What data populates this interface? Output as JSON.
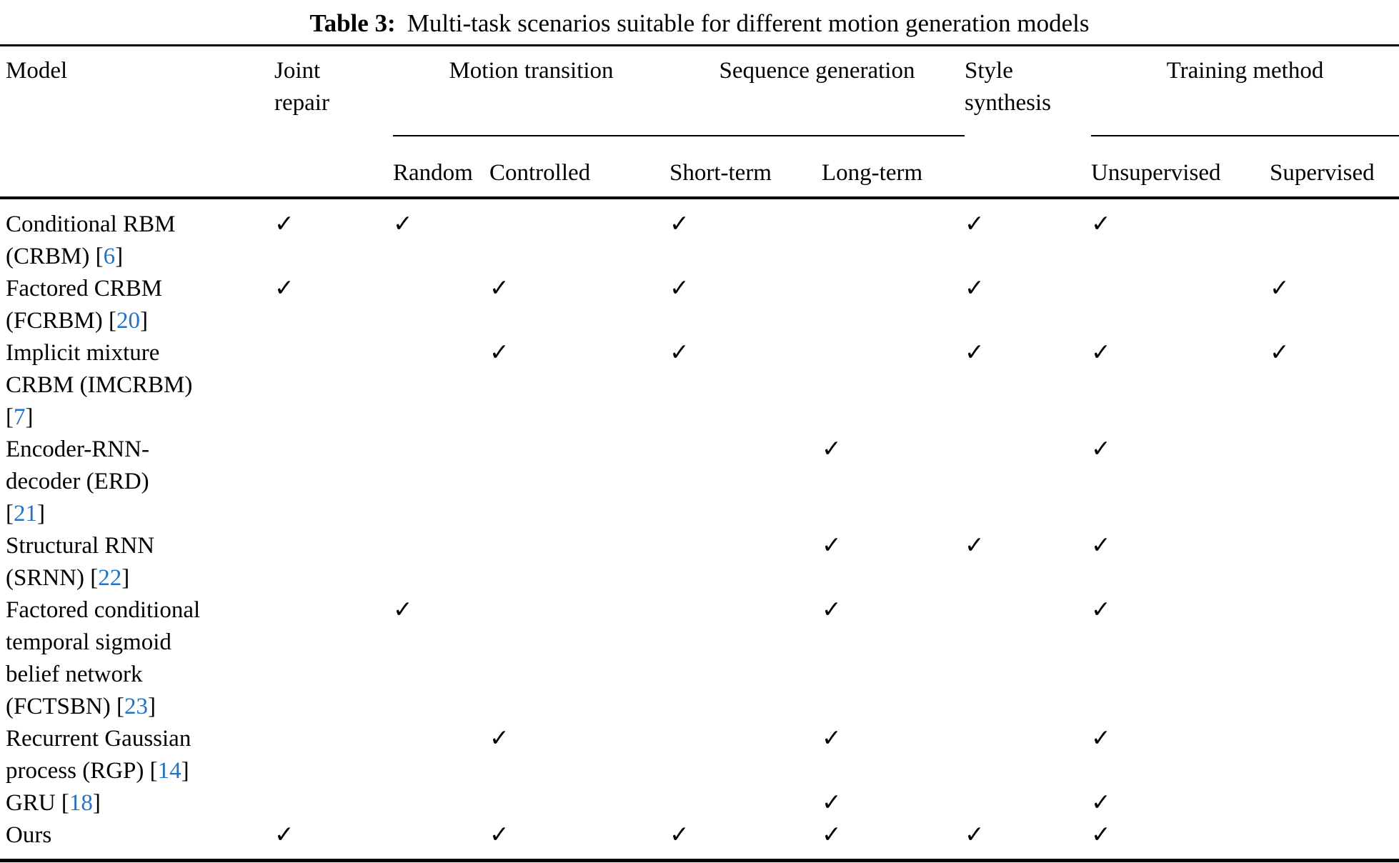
{
  "caption": {
    "label": "Table 3:",
    "text": "Multi-task scenarios suitable for different motion generation models"
  },
  "colors": {
    "text": "#000000",
    "reference_link": "#2472c4",
    "background": "#ffffff"
  },
  "icons": {
    "check": "✓"
  },
  "header": {
    "model": "Model",
    "joint_repair": "Joint\nrepair",
    "style_synthesis": "Style\nsynthesis",
    "groups": [
      {
        "label": "Motion transition",
        "children": [
          "Random",
          "Controlled"
        ]
      },
      {
        "label": "Sequence generation",
        "children": [
          "Short-term",
          "Long-term"
        ]
      },
      {
        "label": "Training method",
        "children": [
          "Unsupervised",
          "Supervised"
        ]
      }
    ],
    "check_columns": [
      "Joint repair",
      "Random",
      "Controlled",
      "Short-term",
      "Long-term",
      "Style synthesis",
      "Unsupervised",
      "Supervised"
    ]
  },
  "rows": [
    {
      "pre": "Conditional RBM\n(CRBM) [",
      "ref": "6",
      "post": "]",
      "checks": [
        true,
        true,
        false,
        true,
        false,
        true,
        true,
        false
      ]
    },
    {
      "pre": "Factored CRBM\n(FCRBM) [",
      "ref": "20",
      "post": "]",
      "checks": [
        true,
        false,
        true,
        true,
        false,
        true,
        false,
        true
      ]
    },
    {
      "pre": "Implicit mixture\nCRBM (IMCRBM)\n[",
      "ref": "7",
      "post": "]",
      "checks": [
        false,
        false,
        true,
        true,
        false,
        true,
        true,
        true
      ]
    },
    {
      "pre": "Encoder-RNN-\ndecoder (ERD)\n[",
      "ref": "21",
      "post": "]",
      "checks": [
        false,
        false,
        false,
        false,
        true,
        false,
        true,
        false
      ]
    },
    {
      "pre": "Structural RNN\n(SRNN) [",
      "ref": "22",
      "post": "]",
      "checks": [
        false,
        false,
        false,
        false,
        true,
        true,
        true,
        false
      ]
    },
    {
      "pre": "Factored conditional\ntemporal sigmoid\nbelief network\n(FCTSBN) [",
      "ref": "23",
      "post": "]",
      "checks": [
        false,
        true,
        false,
        false,
        true,
        false,
        true,
        false
      ]
    },
    {
      "pre": "Recurrent Gaussian\nprocess (RGP) [",
      "ref": "14",
      "post": "]",
      "checks": [
        false,
        false,
        true,
        false,
        true,
        false,
        true,
        false
      ]
    },
    {
      "pre": "GRU [",
      "ref": "18",
      "post": "]",
      "checks": [
        false,
        false,
        false,
        false,
        true,
        false,
        true,
        false
      ]
    },
    {
      "pre": "Ours",
      "ref": "",
      "post": "",
      "checks": [
        true,
        false,
        true,
        true,
        true,
        true,
        true,
        false
      ]
    }
  ]
}
